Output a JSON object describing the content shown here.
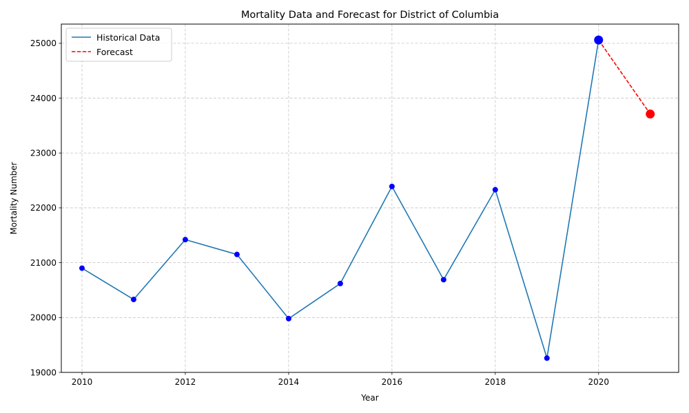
{
  "chart_data": {
    "type": "line",
    "title": "Mortality Data and Forecast for District of Columbia",
    "xlabel": "Year",
    "ylabel": "Mortality Number",
    "xlim": [
      2009.6,
      2021.55
    ],
    "ylim": [
      19000,
      25350
    ],
    "xticks": [
      2010,
      2012,
      2014,
      2016,
      2018,
      2020
    ],
    "yticks": [
      19000,
      20000,
      21000,
      22000,
      23000,
      24000,
      25000
    ],
    "grid": true,
    "legend_position": "upper-left",
    "series": [
      {
        "name": "Historical Data",
        "style": "solid",
        "color": "#1f77b4",
        "marker_color": "#0000ff",
        "x": [
          2010,
          2011,
          2012,
          2013,
          2014,
          2015,
          2016,
          2017,
          2018,
          2019,
          2020
        ],
        "y": [
          20900,
          20330,
          21420,
          21150,
          19980,
          20620,
          22390,
          20690,
          22330,
          19260,
          25060
        ]
      },
      {
        "name": "Forecast",
        "style": "dashed",
        "color": "#ff0000",
        "marker_color": "#ff0000",
        "x": [
          2020,
          2021
        ],
        "y": [
          25060,
          23710
        ]
      }
    ]
  }
}
